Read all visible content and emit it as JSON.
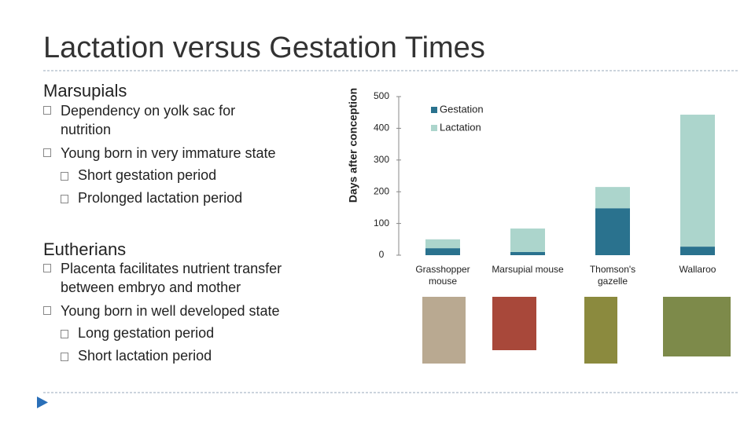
{
  "title": "Lactation versus Gestation Times",
  "sections": [
    {
      "heading": "Marsupials",
      "items": [
        {
          "text": "Dependency on yolk sac for nutrition",
          "sub": []
        },
        {
          "text": "Young born in very immature state",
          "sub": [
            "Short gestation period",
            "Prolonged lactation period"
          ]
        }
      ]
    },
    {
      "heading": "Eutherians",
      "items": [
        {
          "text": "Placenta facilitates nutrient transfer between embryo and mother",
          "sub": []
        },
        {
          "text": "Young born in well developed state",
          "sub": [
            "Long gestation period",
            "Short lactation period"
          ]
        }
      ]
    }
  ],
  "chart_data": {
    "type": "stacked_bar",
    "y_label": "Days after conception",
    "categories": [
      "Grasshopper mouse",
      "Marsupial mouse",
      "Thomson's gazelle",
      "Wallaroo"
    ],
    "series": [
      {
        "name": "Gestation",
        "color": "#2a728e",
        "values": [
          22,
          10,
          148,
          27
        ]
      },
      {
        "name": "Lactation",
        "color": "#acd5cc",
        "values": [
          28,
          74,
          67,
          416
        ]
      }
    ],
    "ylim": [
      0,
      500
    ],
    "yticks": [
      0,
      100,
      200,
      300,
      400,
      500
    ],
    "legend": "top"
  }
}
